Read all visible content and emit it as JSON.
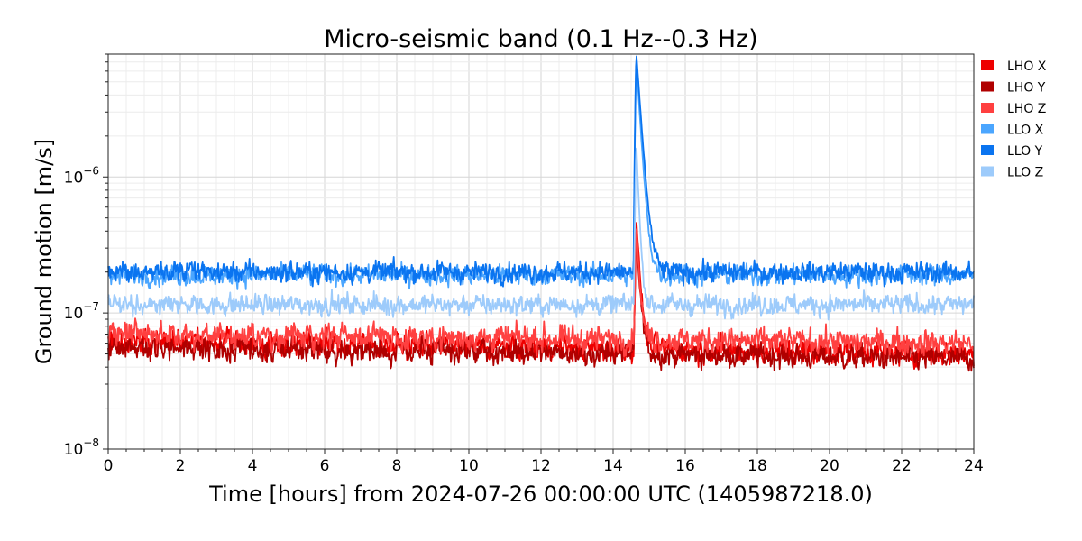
{
  "chart_data": {
    "type": "line",
    "title": "Micro-seismic band (0.1 Hz--0.3 Hz)",
    "xlabel": "Time [hours] from 2024-07-26 00:00:00 UTC (1405987218.0)",
    "ylabel": "Ground motion [m/s]",
    "xlim": [
      0,
      24
    ],
    "ylim": [
      1e-08,
      8e-06
    ],
    "yscale": "log",
    "x_ticks": [
      "0",
      "2",
      "4",
      "6",
      "8",
      "10",
      "12",
      "14",
      "16",
      "18",
      "20",
      "22",
      "24"
    ],
    "y_ticks": [
      {
        "base": "10",
        "exp": "−8",
        "value": 1e-08
      },
      {
        "base": "10",
        "exp": "−7",
        "value": 1e-07
      },
      {
        "base": "10",
        "exp": "−6",
        "value": 1e-06
      }
    ],
    "grid": true,
    "legend_position": "right",
    "event": {
      "time_hours": 14.65
    },
    "series": [
      {
        "name": "LHO X",
        "color": "#ee0000",
        "baseline_start": 6.2e-08,
        "baseline_end": 5e-08,
        "noise": 0.06,
        "peak": 4e-07,
        "decay": 0.35
      },
      {
        "name": "LHO Y",
        "color": "#b00000",
        "baseline_start": 5.6e-08,
        "baseline_end": 4.6e-08,
        "noise": 0.06,
        "peak": 2.9e-07,
        "decay": 0.35
      },
      {
        "name": "LHO Z",
        "color": "#ff4040",
        "baseline_start": 7e-08,
        "baseline_end": 6e-08,
        "noise": 0.06,
        "peak": 3.5e-07,
        "decay": 0.3
      },
      {
        "name": "LLO X",
        "color": "#4ba6ff",
        "baseline_start": 1.9e-07,
        "baseline_end": 1.9e-07,
        "noise": 0.05,
        "peak": 6.5e-06,
        "decay": 0.4
      },
      {
        "name": "LLO Y",
        "color": "#0a74f0",
        "baseline_start": 2e-07,
        "baseline_end": 2e-07,
        "noise": 0.05,
        "peak": 7.5e-06,
        "decay": 0.45
      },
      {
        "name": "LLO Z",
        "color": "#9dcbfb",
        "baseline_start": 1.15e-07,
        "baseline_end": 1.15e-07,
        "noise": 0.05,
        "peak": 1.5e-06,
        "decay": 0.25
      }
    ]
  }
}
